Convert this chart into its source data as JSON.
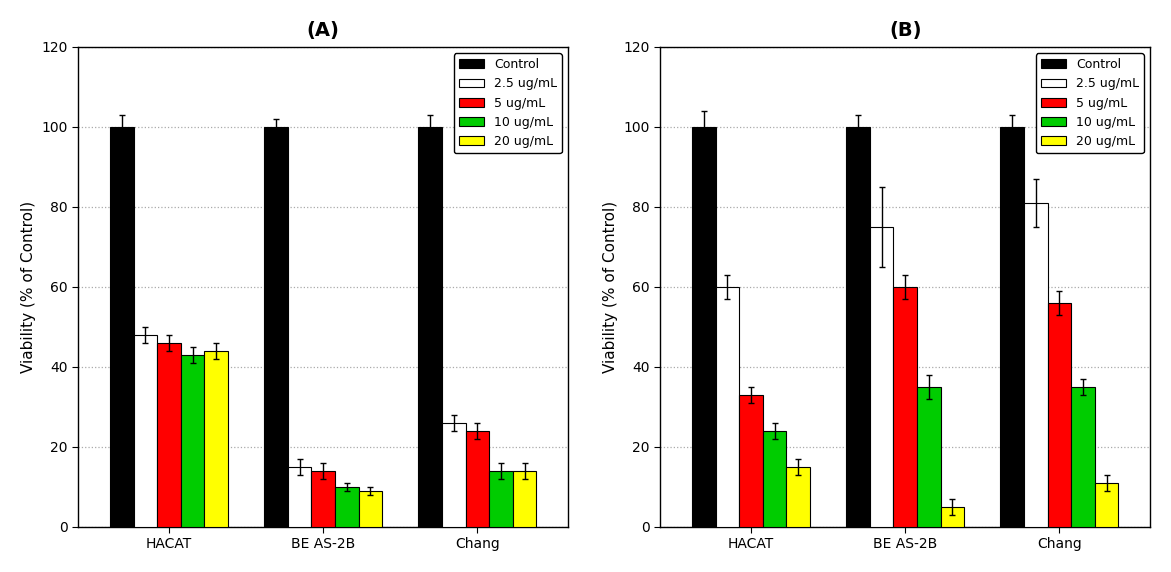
{
  "title_A": "(A)",
  "title_B": "(B)",
  "ylabel": "Viability (% of Control)",
  "categories": [
    "HACAT",
    "BE AS-2B",
    "Chang"
  ],
  "ylim": [
    0,
    120
  ],
  "yticks": [
    0,
    20,
    40,
    60,
    80,
    100,
    120
  ],
  "legend_labels": [
    "Control",
    "2.5 ug/mL",
    "5 ug/mL",
    "10 ug/mL",
    "20 ug/mL"
  ],
  "bar_colors": [
    "#000000",
    "#ffffff",
    "#ff0000",
    "#00cc00",
    "#ffff00"
  ],
  "bar_edgecolors": [
    "#000000",
    "#000000",
    "#000000",
    "#000000",
    "#000000"
  ],
  "data_A": {
    "HACAT": {
      "values": [
        100,
        48,
        46,
        43,
        44
      ],
      "errors": [
        3,
        2,
        2,
        2,
        2
      ]
    },
    "BE AS-2B": {
      "values": [
        100,
        15,
        14,
        10,
        9
      ],
      "errors": [
        2,
        2,
        2,
        1,
        1
      ]
    },
    "Chang": {
      "values": [
        100,
        26,
        24,
        14,
        14
      ],
      "errors": [
        3,
        2,
        2,
        2,
        2
      ]
    }
  },
  "data_B": {
    "HACAT": {
      "values": [
        100,
        60,
        33,
        24,
        15
      ],
      "errors": [
        4,
        3,
        2,
        2,
        2
      ]
    },
    "BE AS-2B": {
      "values": [
        100,
        75,
        60,
        35,
        5
      ],
      "errors": [
        3,
        10,
        3,
        3,
        2
      ]
    },
    "Chang": {
      "values": [
        100,
        81,
        56,
        35,
        11
      ],
      "errors": [
        3,
        6,
        3,
        2,
        2
      ]
    }
  },
  "title_fontsize": 14,
  "label_fontsize": 11,
  "tick_fontsize": 10,
  "legend_fontsize": 9,
  "bar_width": 0.13,
  "figure_facecolor": "#ffffff",
  "axes_facecolor": "#ffffff",
  "grid_color": "#aaaaaa",
  "group_centers": [
    0.35,
    1.2,
    2.05
  ]
}
